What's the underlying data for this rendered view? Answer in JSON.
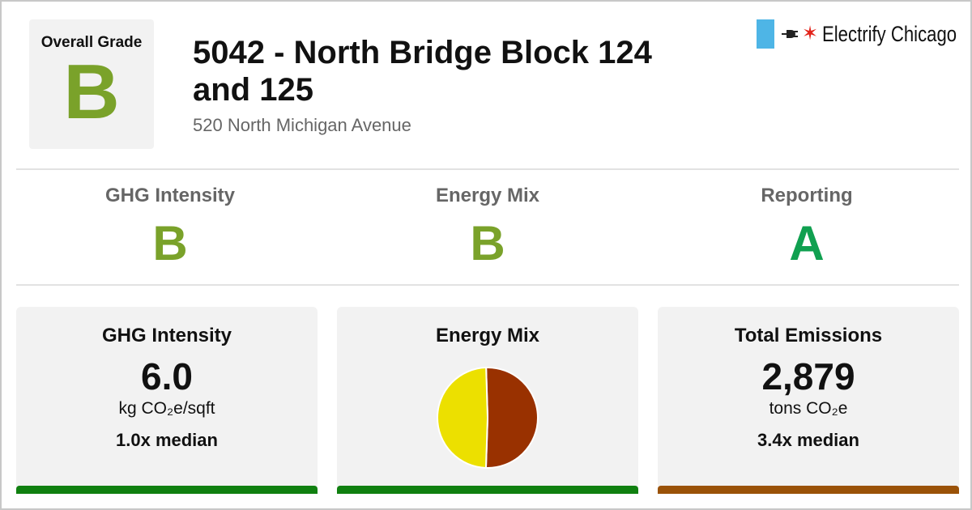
{
  "colors": {
    "grade_b": "#7aa22a",
    "grade_a": "#10a050",
    "good_bar": "#108010",
    "warn_bar": "#9a5208",
    "pie_yellow": "#ece000",
    "pie_brown": "#993100"
  },
  "overall": {
    "label": "Overall Grade",
    "grade": "B"
  },
  "building": {
    "title": "5042 - North Bridge Block 124 and 125",
    "address": "520 North Michigan Avenue"
  },
  "brand": {
    "name": "Electrify Chicago",
    "icons": [
      "flag-stripe-icon",
      "plug-icon",
      "star-icon"
    ]
  },
  "subgrades": [
    {
      "label": "GHG Intensity",
      "grade": "B"
    },
    {
      "label": "Energy Mix",
      "grade": "B"
    },
    {
      "label": "Reporting",
      "grade": "A"
    }
  ],
  "cards": {
    "ghg": {
      "title": "GHG Intensity",
      "value": "6.0",
      "unit": "kg CO₂e/sqft",
      "median": "1.0x median"
    },
    "mix": {
      "title": "Energy Mix"
    },
    "total": {
      "title": "Total Emissions",
      "value": "2,879",
      "unit": "tons CO₂e",
      "median": "3.4x median"
    }
  },
  "chart_data": {
    "type": "pie",
    "slices": [
      {
        "color": "#993100",
        "value": 51
      },
      {
        "color": "#ece000",
        "value": 49
      }
    ]
  }
}
